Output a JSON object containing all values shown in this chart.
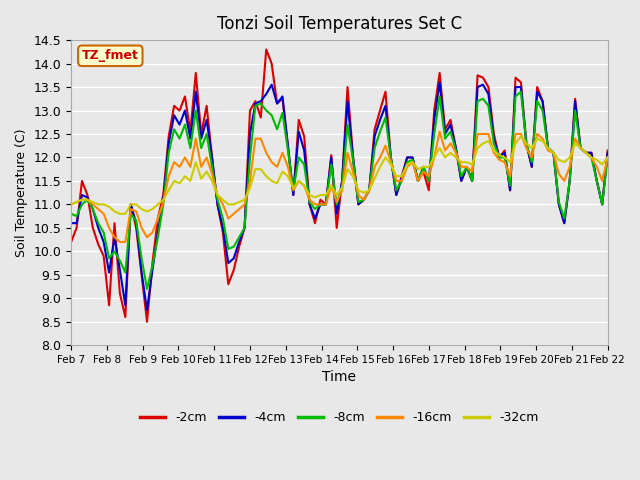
{
  "title": "Tonzi Soil Temperatures Set C",
  "xlabel": "Time",
  "ylabel": "Soil Temperature (C)",
  "ylim": [
    8.0,
    14.5
  ],
  "annotation_text": "TZ_fmet",
  "annotation_color": "#cc0000",
  "annotation_bg": "#ffffcc",
  "annotation_border": "#cc6600",
  "legend_labels": [
    "-2cm",
    "-4cm",
    "-8cm",
    "-16cm",
    "-32cm"
  ],
  "legend_colors": [
    "#dd0000",
    "#0000cc",
    "#00bb00",
    "#ff8800",
    "#cccc00"
  ],
  "bg_color": "#e8e8e8",
  "x_ticks": [
    "Feb 7",
    "Feb 8",
    "Feb 9",
    "Feb 10",
    "Feb 11",
    "Feb 12",
    "Feb 13",
    "Feb 14",
    "Feb 15",
    "Feb 16",
    "Feb 17",
    "Feb 18",
    "Feb 19",
    "Feb 20",
    "Feb 21",
    "Feb 22"
  ],
  "series": {
    "depth_2cm": [
      10.2,
      10.5,
      11.5,
      11.2,
      10.5,
      10.15,
      9.9,
      8.85,
      10.6,
      9.1,
      8.6,
      11.0,
      10.5,
      9.5,
      8.5,
      9.75,
      10.7,
      11.2,
      12.45,
      13.1,
      13.0,
      13.3,
      12.55,
      13.8,
      12.5,
      13.1,
      12.0,
      11.0,
      10.4,
      9.3,
      9.6,
      10.1,
      10.5,
      13.0,
      13.2,
      12.85,
      14.3,
      14.0,
      13.15,
      13.25,
      12.25,
      11.2,
      12.8,
      12.45,
      11.0,
      10.6,
      11.1,
      11.0,
      12.05,
      10.5,
      11.5,
      13.5,
      12.05,
      11.0,
      11.1,
      11.3,
      12.6,
      13.0,
      13.4,
      12.0,
      11.2,
      11.6,
      12.0,
      12.0,
      11.5,
      11.7,
      11.3,
      13.0,
      13.8,
      12.6,
      12.8,
      12.2,
      11.5,
      11.8,
      11.5,
      13.75,
      13.7,
      13.5,
      12.5,
      12.0,
      12.15,
      11.3,
      13.7,
      13.6,
      12.3,
      11.8,
      13.5,
      13.2,
      12.2,
      12.1,
      11.0,
      10.6,
      11.5,
      13.25,
      12.2,
      12.1,
      12.1,
      11.5,
      11.0,
      12.15
    ],
    "depth_4cm": [
      10.6,
      10.6,
      11.2,
      11.15,
      10.9,
      10.5,
      10.2,
      9.55,
      10.3,
      9.6,
      8.85,
      11.0,
      10.6,
      9.55,
      8.75,
      9.6,
      10.4,
      11.1,
      12.3,
      12.9,
      12.7,
      13.0,
      12.4,
      13.4,
      12.4,
      12.8,
      12.0,
      11.0,
      10.5,
      9.75,
      9.85,
      10.2,
      10.5,
      12.5,
      13.15,
      13.2,
      13.35,
      13.55,
      13.15,
      13.3,
      12.25,
      11.2,
      12.55,
      12.15,
      11.0,
      10.7,
      11.0,
      11.0,
      12.0,
      10.8,
      11.5,
      13.2,
      12.0,
      11.0,
      11.1,
      11.3,
      12.45,
      12.8,
      13.1,
      12.0,
      11.2,
      11.55,
      12.0,
      12.0,
      11.5,
      11.8,
      11.5,
      12.8,
      13.6,
      12.5,
      12.7,
      12.2,
      11.5,
      11.8,
      11.5,
      13.5,
      13.55,
      13.35,
      12.4,
      12.0,
      12.1,
      11.3,
      13.5,
      13.5,
      12.3,
      11.8,
      13.4,
      13.2,
      12.2,
      12.1,
      11.0,
      10.6,
      11.5,
      13.2,
      12.2,
      12.1,
      12.1,
      11.5,
      11.0,
      12.1
    ],
    "depth_8cm": [
      10.8,
      10.75,
      11.0,
      11.1,
      10.9,
      10.6,
      10.4,
      9.85,
      10.0,
      9.8,
      9.55,
      10.8,
      10.65,
      9.85,
      9.2,
      9.7,
      10.3,
      11.0,
      12.1,
      12.6,
      12.4,
      12.7,
      12.2,
      13.0,
      12.2,
      12.5,
      11.8,
      11.1,
      10.7,
      10.05,
      10.1,
      10.3,
      10.5,
      12.0,
      13.1,
      13.15,
      13.0,
      12.9,
      12.6,
      12.95,
      12.15,
      11.3,
      12.0,
      11.85,
      11.05,
      10.9,
      11.0,
      11.0,
      11.85,
      11.0,
      11.4,
      12.7,
      11.95,
      11.05,
      11.1,
      11.3,
      12.2,
      12.55,
      12.85,
      12.0,
      11.3,
      11.5,
      11.9,
      11.95,
      11.5,
      11.8,
      11.5,
      12.5,
      13.3,
      12.4,
      12.55,
      12.15,
      11.6,
      11.8,
      11.5,
      13.2,
      13.25,
      13.1,
      12.3,
      12.0,
      12.0,
      11.4,
      13.3,
      13.4,
      12.3,
      11.9,
      13.2,
      13.0,
      12.2,
      12.1,
      11.05,
      10.7,
      11.5,
      13.0,
      12.2,
      12.1,
      12.0,
      11.5,
      11.0,
      12.0
    ],
    "depth_16cm": [
      11.0,
      11.05,
      11.1,
      11.1,
      11.0,
      10.9,
      10.8,
      10.5,
      10.3,
      10.2,
      10.2,
      10.9,
      10.85,
      10.5,
      10.3,
      10.4,
      10.7,
      11.05,
      11.6,
      11.9,
      11.8,
      12.0,
      11.8,
      12.4,
      11.8,
      12.0,
      11.65,
      11.2,
      11.0,
      10.7,
      10.8,
      10.9,
      11.0,
      11.5,
      12.4,
      12.4,
      12.1,
      11.9,
      11.8,
      12.1,
      11.8,
      11.3,
      11.5,
      11.4,
      11.1,
      11.0,
      11.0,
      11.0,
      11.4,
      11.05,
      11.3,
      12.1,
      11.7,
      11.2,
      11.1,
      11.3,
      11.8,
      12.0,
      12.25,
      11.9,
      11.5,
      11.5,
      11.8,
      11.9,
      11.5,
      11.7,
      11.6,
      12.0,
      12.55,
      12.15,
      12.3,
      12.1,
      11.8,
      11.8,
      11.7,
      12.5,
      12.5,
      12.5,
      12.1,
      11.95,
      11.9,
      11.6,
      12.5,
      12.5,
      12.2,
      12.0,
      12.5,
      12.4,
      12.15,
      12.1,
      11.65,
      11.5,
      11.8,
      12.4,
      12.2,
      12.1,
      12.0,
      11.8,
      11.5,
      12.0
    ],
    "depth_32cm": [
      11.0,
      11.05,
      11.1,
      11.1,
      11.05,
      11.0,
      11.0,
      10.95,
      10.85,
      10.8,
      10.8,
      11.0,
      11.0,
      10.9,
      10.85,
      10.9,
      11.0,
      11.1,
      11.3,
      11.5,
      11.45,
      11.6,
      11.5,
      11.9,
      11.55,
      11.7,
      11.5,
      11.2,
      11.1,
      11.0,
      11.0,
      11.05,
      11.1,
      11.35,
      11.75,
      11.75,
      11.6,
      11.5,
      11.45,
      11.7,
      11.6,
      11.35,
      11.5,
      11.4,
      11.2,
      11.15,
      11.2,
      11.2,
      11.4,
      11.2,
      11.35,
      11.75,
      11.6,
      11.3,
      11.25,
      11.3,
      11.55,
      11.8,
      12.0,
      11.85,
      11.6,
      11.6,
      11.85,
      11.9,
      11.75,
      11.8,
      11.8,
      12.0,
      12.2,
      12.0,
      12.1,
      12.0,
      11.9,
      11.9,
      11.85,
      12.2,
      12.3,
      12.35,
      12.15,
      12.05,
      12.0,
      11.9,
      12.3,
      12.45,
      12.3,
      12.2,
      12.4,
      12.35,
      12.2,
      12.1,
      11.95,
      11.9,
      12.0,
      12.3,
      12.2,
      12.1,
      12.0,
      11.95,
      11.85,
      12.0
    ]
  }
}
